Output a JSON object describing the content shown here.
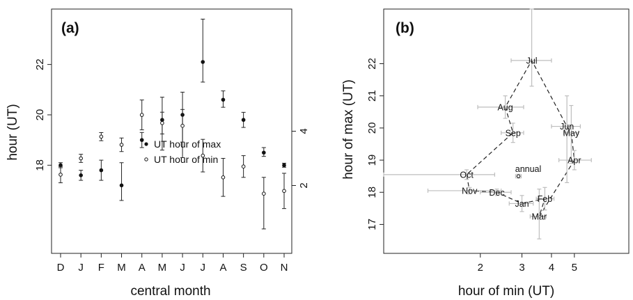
{
  "chart_data": [
    {
      "type": "scatter",
      "panel_label": "(a)",
      "xlabel": "central month",
      "ylabel": "hour (UT)",
      "categories": [
        "D",
        "J",
        "F",
        "M",
        "A",
        "M",
        "J",
        "J",
        "A",
        "S",
        "O",
        "N"
      ],
      "grid": false,
      "legend_position": "center",
      "series": [
        {
          "name": "UT hour of max",
          "marker": "filled-circle",
          "axis": "left",
          "ylim": [
            14.5,
            24.2
          ],
          "yticks": [
            18,
            20,
            22
          ],
          "values": [
            18.0,
            17.6,
            17.8,
            17.2,
            19.0,
            19.8,
            20.0,
            22.1,
            20.6,
            19.8,
            18.5,
            18.0
          ],
          "err_low": [
            17.9,
            17.4,
            17.4,
            16.6,
            18.7,
            18.6,
            18.3,
            21.3,
            20.3,
            19.5,
            18.35,
            17.92
          ],
          "err_high": [
            18.1,
            17.8,
            18.2,
            18.1,
            19.3,
            20.7,
            20.9,
            23.8,
            20.95,
            20.1,
            18.7,
            18.08
          ]
        },
        {
          "name": "UT hour of min",
          "marker": "open-circle",
          "axis": "right",
          "ylim": [
            -0.5,
            8.5
          ],
          "yticks": [
            2,
            4
          ],
          "values": [
            2.4,
            3.0,
            3.8,
            3.5,
            4.6,
            4.3,
            4.2,
            3.1,
            2.3,
            2.7,
            1.7,
            1.8
          ],
          "err_low": [
            2.1,
            2.85,
            3.65,
            3.25,
            4.05,
            3.9,
            3.6,
            2.5,
            1.6,
            2.3,
            0.4,
            1.15
          ],
          "err_high": [
            2.7,
            3.15,
            3.95,
            3.75,
            5.15,
            4.7,
            4.8,
            3.7,
            3.0,
            3.1,
            2.3,
            2.45
          ]
        }
      ]
    },
    {
      "type": "scatter",
      "panel_label": "(b)",
      "xlabel": "hour of min (UT)",
      "ylabel": "hour of max (UT)",
      "xscale": "log",
      "xlim": [
        0.78,
        8.5
      ],
      "ylim": [
        16.1,
        23.7
      ],
      "xticks": [
        2,
        3,
        4,
        5
      ],
      "yticks": [
        17,
        18,
        19,
        20,
        21,
        22
      ],
      "grid": false,
      "cycle_order": [
        "Jan",
        "Feb",
        "Mar",
        "Apr",
        "May",
        "Jun",
        "Jul",
        "Aug",
        "Sep",
        "Oct",
        "Nov",
        "Dec",
        "Jan"
      ],
      "points": [
        {
          "label": "Jan",
          "x": 3.0,
          "y": 17.65,
          "xerr": [
            2.65,
            3.35
          ],
          "yerr": [
            17.4,
            17.9
          ]
        },
        {
          "label": "Feb",
          "x": 3.75,
          "y": 17.8,
          "xerr": [
            3.45,
            4.1
          ],
          "yerr": [
            17.45,
            18.15
          ]
        },
        {
          "label": "Mar",
          "x": 3.55,
          "y": 17.25,
          "xerr": [
            3.25,
            3.8
          ],
          "yerr": [
            16.55,
            18.1
          ]
        },
        {
          "label": "Apr",
          "x": 5.0,
          "y": 19.0,
          "xerr": [
            4.3,
            5.9
          ],
          "yerr": [
            18.7,
            19.3
          ]
        },
        {
          "label": "May",
          "x": 4.85,
          "y": 19.85,
          "xerr": [
            4.5,
            5.2
          ],
          "yerr": [
            18.9,
            20.7
          ]
        },
        {
          "label": "Jun",
          "x": 4.65,
          "y": 20.05,
          "xerr": [
            4.0,
            5.3
          ],
          "yerr": [
            18.3,
            21.0
          ]
        },
        {
          "label": "Jul",
          "x": 3.3,
          "y": 22.1,
          "xerr": [
            2.7,
            4.0
          ],
          "yerr": [
            21.3,
            23.7
          ]
        },
        {
          "label": "Aug",
          "x": 2.55,
          "y": 20.65,
          "xerr": [
            1.95,
            3.05
          ],
          "yerr": [
            20.3,
            21.0
          ]
        },
        {
          "label": "Sep",
          "x": 2.75,
          "y": 19.85,
          "xerr": [
            2.45,
            3.05
          ],
          "yerr": [
            19.55,
            20.15
          ]
        },
        {
          "label": "Oct",
          "x": 1.75,
          "y": 18.55,
          "xerr": [
            0.78,
            2.3
          ],
          "yerr": [
            18.4,
            18.7
          ]
        },
        {
          "label": "Nov",
          "x": 1.8,
          "y": 18.05,
          "xerr": [
            1.2,
            2.45
          ],
          "yerr": [
            17.95,
            18.15
          ]
        },
        {
          "label": "Dec",
          "x": 2.35,
          "y": 18.0,
          "xerr": [
            2.0,
            2.7
          ],
          "yerr": [
            17.9,
            18.1
          ]
        },
        {
          "label": "annual",
          "x": 2.9,
          "y": 18.5,
          "xerr": [
            2.82,
            2.98
          ],
          "yerr": [
            18.44,
            18.56
          ]
        }
      ]
    }
  ]
}
